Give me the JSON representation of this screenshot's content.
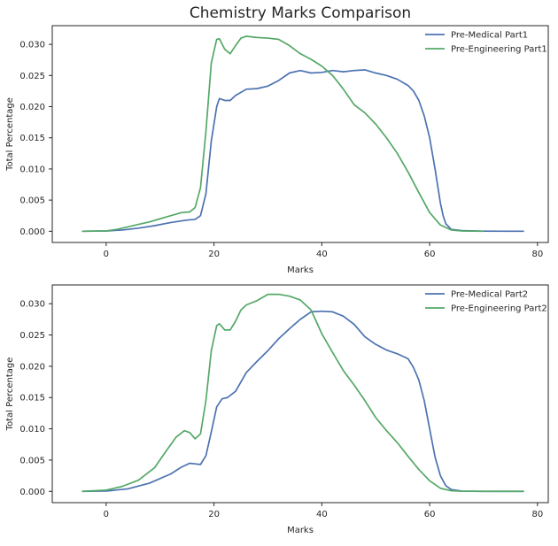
{
  "figure": {
    "title": "Chemistry Marks Comparison"
  },
  "chart_data": [
    {
      "type": "line",
      "title": "Chemistry Marks Comparison",
      "xlabel": "Marks",
      "ylabel": "Total Percentage",
      "xlim": [
        -10,
        82
      ],
      "ylim": [
        -0.0018,
        0.033
      ],
      "xticks": [
        0,
        20,
        40,
        60,
        80
      ],
      "yticks": [
        0.0,
        0.005,
        0.01,
        0.015,
        0.02,
        0.025,
        0.03
      ],
      "ytick_labels": [
        "0.000",
        "0.005",
        "0.010",
        "0.015",
        "0.020",
        "0.025",
        "0.030"
      ],
      "grid": false,
      "legend": "top-right",
      "series": [
        {
          "name": "Pre-Medical Part1",
          "color": "#4c72b0",
          "x": [
            -4.5,
            0,
            3,
            6,
            9,
            12,
            15,
            16.5,
            17.5,
            18.5,
            19.5,
            20.5,
            21,
            22,
            23,
            24,
            26,
            28,
            30,
            32,
            34,
            36,
            38,
            40,
            42,
            44,
            46,
            48,
            50,
            52,
            54,
            56,
            57,
            58,
            59,
            60,
            61,
            62,
            62.5,
            63,
            64,
            66,
            70,
            74,
            77.5
          ],
          "y": [
            0,
            5e-05,
            0.0002,
            0.0005,
            0.0009,
            0.0014,
            0.0018,
            0.0019,
            0.0025,
            0.006,
            0.0145,
            0.02,
            0.0213,
            0.021,
            0.021,
            0.0218,
            0.0228,
            0.0229,
            0.0233,
            0.0242,
            0.0254,
            0.0258,
            0.0254,
            0.0255,
            0.0258,
            0.0256,
            0.0258,
            0.0259,
            0.0254,
            0.025,
            0.0244,
            0.0234,
            0.0225,
            0.021,
            0.0185,
            0.015,
            0.01,
            0.0045,
            0.0025,
            0.0012,
            0.0003,
            0.0001,
            2e-05,
            0,
            0
          ]
        },
        {
          "name": "Pre-Engineering Part1",
          "color": "#55a868",
          "x": [
            -4.5,
            0,
            2,
            4,
            6,
            8,
            10,
            12,
            14,
            15.5,
            16.5,
            17.5,
            18.5,
            19.5,
            20.5,
            21,
            22,
            23,
            24,
            25,
            26,
            28,
            30,
            32,
            34,
            36,
            38,
            40,
            42,
            44,
            46,
            48,
            50,
            52,
            54,
            56,
            58,
            60,
            62,
            64,
            66,
            70
          ],
          "y": [
            0,
            5e-05,
            0.0003,
            0.0007,
            0.0011,
            0.0015,
            0.002,
            0.0025,
            0.003,
            0.0031,
            0.0038,
            0.007,
            0.016,
            0.027,
            0.0308,
            0.0309,
            0.0292,
            0.0285,
            0.0298,
            0.031,
            0.0313,
            0.0311,
            0.031,
            0.0308,
            0.0298,
            0.0285,
            0.0276,
            0.0265,
            0.025,
            0.0228,
            0.0203,
            0.019,
            0.0172,
            0.015,
            0.0125,
            0.0095,
            0.0062,
            0.003,
            0.001,
            0.0002,
            5e-05,
            0
          ]
        }
      ]
    },
    {
      "type": "line",
      "title": "",
      "xlabel": "Marks",
      "ylabel": "Total Percentage",
      "xlim": [
        -10,
        82
      ],
      "ylim": [
        -0.0018,
        0.033
      ],
      "xticks": [
        0,
        20,
        40,
        60,
        80
      ],
      "yticks": [
        0.0,
        0.005,
        0.01,
        0.015,
        0.02,
        0.025,
        0.03
      ],
      "ytick_labels": [
        "0.000",
        "0.005",
        "0.010",
        "0.015",
        "0.020",
        "0.025",
        "0.030"
      ],
      "grid": false,
      "legend": "top-right",
      "series": [
        {
          "name": "Pre-Medical Part2",
          "color": "#4c72b0",
          "x": [
            -4.5,
            0,
            4,
            8,
            12,
            14,
            15.5,
            16.5,
            17.5,
            18.5,
            19.5,
            20.5,
            21.5,
            22.5,
            24,
            26,
            28,
            30,
            32,
            34,
            36,
            38,
            40,
            42,
            44,
            46,
            48,
            50,
            52,
            54,
            56,
            57,
            58,
            59,
            60,
            61,
            62,
            63,
            64,
            66,
            70,
            77.5
          ],
          "y": [
            0,
            5e-05,
            0.0004,
            0.0013,
            0.0028,
            0.0039,
            0.0045,
            0.0044,
            0.0043,
            0.0057,
            0.0095,
            0.0135,
            0.0148,
            0.015,
            0.016,
            0.019,
            0.0208,
            0.0225,
            0.0244,
            0.026,
            0.0275,
            0.0287,
            0.0288,
            0.0287,
            0.028,
            0.0267,
            0.0247,
            0.0235,
            0.0226,
            0.022,
            0.0212,
            0.0198,
            0.0178,
            0.0145,
            0.01,
            0.0055,
            0.0025,
            0.0009,
            0.0003,
            5e-05,
            0,
            0
          ]
        },
        {
          "name": "Pre-Engineering Part2",
          "color": "#55a868",
          "x": [
            -4.5,
            0,
            3,
            6,
            9,
            11,
            13,
            14.5,
            15.5,
            16.5,
            17.5,
            18.5,
            19.5,
            20.5,
            21,
            22,
            23,
            24,
            25,
            26,
            28,
            30,
            32,
            34,
            36,
            38,
            40,
            42,
            44,
            46,
            48,
            50,
            52,
            54,
            56,
            58,
            60,
            62,
            64,
            66,
            70,
            77.5
          ],
          "y": [
            0,
            0.0002,
            0.0008,
            0.0018,
            0.0038,
            0.0063,
            0.0087,
            0.0097,
            0.0094,
            0.0084,
            0.0092,
            0.0145,
            0.0225,
            0.0265,
            0.0268,
            0.0258,
            0.0258,
            0.0272,
            0.029,
            0.0298,
            0.0305,
            0.0315,
            0.0315,
            0.0312,
            0.0306,
            0.029,
            0.0252,
            0.0222,
            0.0193,
            0.017,
            0.0145,
            0.0118,
            0.0097,
            0.0078,
            0.0056,
            0.0035,
            0.0017,
            0.0005,
            0.0001,
            2e-05,
            0,
            0
          ]
        }
      ]
    }
  ]
}
